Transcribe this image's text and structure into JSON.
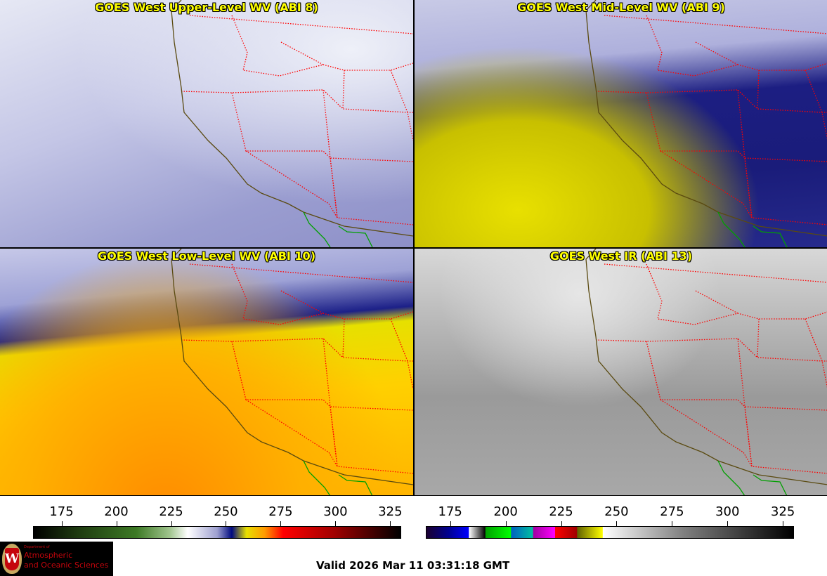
{
  "panels": [
    {
      "title": "GOES West Upper-Level WV (ABI 8)"
    },
    {
      "title": "GOES West Mid-Level WV (ABI 9)"
    },
    {
      "title": "GOES West Low-Level WV (ABI 10)"
    },
    {
      "title": "GOES West IR (ABI 13)"
    }
  ],
  "colorbars": [
    {
      "name": "water-vapor",
      "range": [
        162,
        330
      ],
      "ticks": [
        "175",
        "200",
        "225",
        "250",
        "275",
        "300",
        "325"
      ]
    },
    {
      "name": "infrared",
      "range": [
        164,
        330
      ],
      "ticks": [
        "175",
        "200",
        "225",
        "250",
        "275",
        "300",
        "325"
      ]
    }
  ],
  "logo": {
    "dept": "Department of",
    "line1": "Atmospheric",
    "line2": "and Oceanic Sciences",
    "crest": "W"
  },
  "valid_time": "Valid 2026 Mar 11 03:31:18 GMT",
  "colors": {
    "title": "#ffff00",
    "state_borders": "#ff0000",
    "coast": "#5a4a10",
    "mexico_coast": "#00a000"
  }
}
